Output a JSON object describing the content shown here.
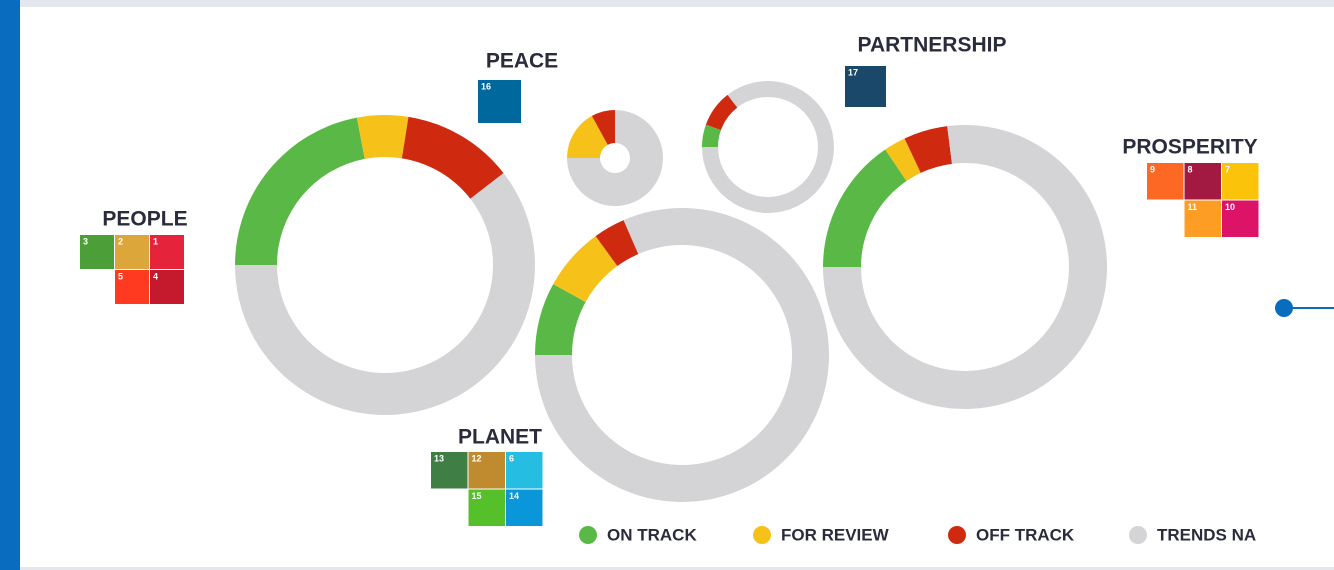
{
  "chart_data": [
    {
      "type": "pie",
      "title": "PEOPLE",
      "categories": [
        "ON TRACK",
        "FOR REVIEW",
        "OFF TRACK",
        "TRENDS NA"
      ],
      "colors": [
        "#5ab946",
        "#f6c21a",
        "#cf2a10",
        "#d4d4d6"
      ],
      "values": [
        22,
        5.5,
        12,
        60.5
      ],
      "goals": [
        {
          "number": 3,
          "color": "#4c9f38"
        },
        {
          "number": 2,
          "color": "#dda63a"
        },
        {
          "number": 1,
          "color": "#e5243b"
        },
        {
          "number": 5,
          "color": "#ff3a21"
        },
        {
          "number": 4,
          "color": "#c5192d"
        }
      ]
    },
    {
      "type": "pie",
      "title": "PEACE",
      "categories": [
        "ON TRACK",
        "FOR REVIEW",
        "OFF TRACK",
        "TRENDS NA"
      ],
      "colors": [
        "#5ab946",
        "#f6c21a",
        "#cf2a10",
        "#d4d4d6"
      ],
      "values": [
        0,
        17,
        8,
        75
      ],
      "goals": [
        {
          "number": 16,
          "color": "#00689d"
        }
      ]
    },
    {
      "type": "pie",
      "title": "PARTNERSHIP",
      "categories": [
        "ON TRACK",
        "FOR REVIEW",
        "OFF TRACK",
        "TRENDS NA"
      ],
      "colors": [
        "#5ab946",
        "#f6c21a",
        "#cf2a10",
        "#d4d4d6"
      ],
      "values": [
        5.5,
        0,
        9,
        85.5
      ],
      "goals": [
        {
          "number": 17,
          "color": "#19486a"
        }
      ]
    },
    {
      "type": "pie",
      "title": "PROSPERITY",
      "categories": [
        "ON TRACK",
        "FOR REVIEW",
        "OFF TRACK",
        "TRENDS NA"
      ],
      "colors": [
        "#5ab946",
        "#f6c21a",
        "#cf2a10",
        "#d4d4d6"
      ],
      "values": [
        15.5,
        2.5,
        5,
        77
      ],
      "goals": [
        {
          "number": 9,
          "color": "#fd6925"
        },
        {
          "number": 8,
          "color": "#a21942"
        },
        {
          "number": 7,
          "color": "#fcc30b"
        },
        {
          "number": 11,
          "color": "#fd9d24"
        },
        {
          "number": 10,
          "color": "#dd1367"
        }
      ]
    },
    {
      "type": "pie",
      "title": "PLANET",
      "categories": [
        "ON TRACK",
        "FOR REVIEW",
        "OFF TRACK",
        "TRENDS NA"
      ],
      "colors": [
        "#5ab946",
        "#f6c21a",
        "#cf2a10",
        "#d4d4d6"
      ],
      "values": [
        8,
        7,
        3.5,
        81.5
      ],
      "goals": [
        {
          "number": 13,
          "color": "#3f7e44"
        },
        {
          "number": 12,
          "color": "#bf8b2e"
        },
        {
          "number": 6,
          "color": "#26bde2"
        },
        {
          "number": 15,
          "color": "#56c02b"
        },
        {
          "number": 14,
          "color": "#0a97d9"
        }
      ]
    }
  ]
}
